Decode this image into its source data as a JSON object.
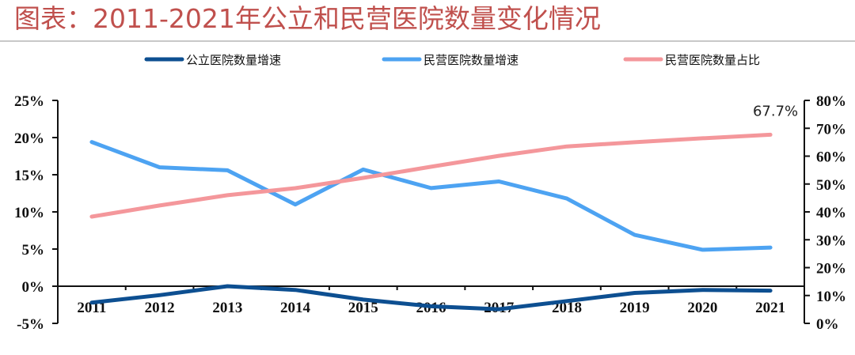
{
  "title": "图表：2011-2021年公立和民营医院数量变化情况",
  "colors": {
    "title": "#c0504d",
    "public_growth": "#0d4f91",
    "private_growth": "#4da3f2",
    "private_share": "#f4979b",
    "axis": "#111111"
  },
  "chart_data": {
    "type": "line",
    "title": "2011-2021年公立和民营医院数量变化情况",
    "categories": [
      "2011",
      "2012",
      "2013",
      "2014",
      "2015",
      "2016",
      "2017",
      "2018",
      "2019",
      "2020",
      "2021"
    ],
    "series": [
      {
        "name": "公立医院数量增速",
        "axis": "left",
        "color": "#0d4f91",
        "values": [
          -2.2,
          -1.2,
          0.0,
          -0.5,
          -1.8,
          -2.7,
          -3.1,
          -2.0,
          -0.9,
          -0.5,
          -0.6
        ]
      },
      {
        "name": "民营医院数量增速",
        "axis": "left",
        "color": "#4da3f2",
        "values": [
          19.4,
          16.0,
          15.6,
          11.0,
          15.7,
          13.2,
          14.1,
          11.8,
          6.9,
          4.9,
          5.2
        ]
      },
      {
        "name": "民营医院数量占比",
        "axis": "right",
        "color": "#f4979b",
        "values": [
          38.3,
          42.3,
          46.0,
          48.5,
          52.2,
          56.2,
          60.1,
          63.5,
          65.0,
          66.4,
          67.7
        ]
      }
    ],
    "left_axis": {
      "ylim": [
        -5,
        25
      ],
      "ticks": [
        25,
        20,
        15,
        10,
        5,
        0,
        -5
      ],
      "tick_labels": [
        "25%",
        "20%",
        "15%",
        "10%",
        "5%",
        "0%",
        "-5%"
      ]
    },
    "right_axis": {
      "ylim": [
        0,
        80
      ],
      "ticks": [
        80,
        70,
        60,
        50,
        40,
        30,
        20,
        10,
        0
      ],
      "tick_labels": [
        "80%",
        "70%",
        "60%",
        "50%",
        "40%",
        "30%",
        "20%",
        "10%",
        "0%"
      ]
    },
    "xlabel": "",
    "ylabel": "",
    "grid": false,
    "legend_position": "top",
    "annotations": [
      {
        "text": "67.7%",
        "series": "民营医院数量占比",
        "category": "2021"
      }
    ]
  }
}
